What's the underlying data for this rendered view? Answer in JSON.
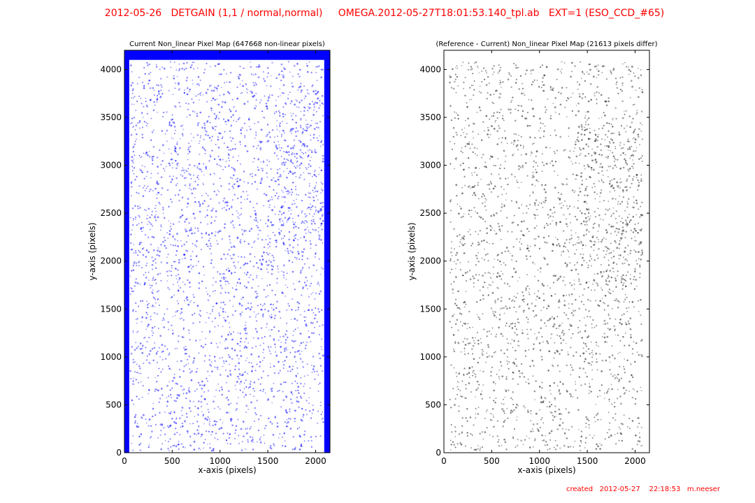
{
  "header": {
    "title": "2012-05-26   DETGAIN (1,1 / normal,normal)     OMEGA.2012-05-27T18:01:53.140_tpl.ab   EXT=1 (ESO_CCD_#65)",
    "title_color": "#ff0000"
  },
  "footer": {
    "created": "created   2012-05-27    22:18:53   m.neeser",
    "color": "#ff0000"
  },
  "chart_data": [
    {
      "type": "scatter",
      "title": "Current Non_linear Pixel Map (647668 non-linear pixels)",
      "xlabel": "x-axis (pixels)",
      "ylabel": "y-axis (pixels)",
      "xlim": [
        0,
        2150
      ],
      "ylim": [
        0,
        4200
      ],
      "xticks": [
        0,
        500,
        1000,
        1500,
        2000
      ],
      "yticks": [
        0,
        500,
        1000,
        1500,
        2000,
        2500,
        3000,
        3500,
        4000
      ],
      "grid": false,
      "point_color": "#0000ff",
      "border_regions": [
        {
          "x": [
            0,
            50
          ],
          "y": [
            0,
            4200
          ]
        },
        {
          "x": [
            2090,
            2150
          ],
          "y": [
            0,
            4200
          ]
        },
        {
          "x": [
            0,
            2150
          ],
          "y": [
            4100,
            4200
          ]
        }
      ],
      "density": "uniform random scatter with higher density toward x≈1700–2100, y≈2300–3600"
    },
    {
      "type": "scatter",
      "title": "(Reference - Current) Non_linear Pixel Map (21613 pixels differ)",
      "xlabel": "x-axis (pixels)",
      "ylabel": "y-axis (pixels)",
      "xlim": [
        0,
        2150
      ],
      "ylim": [
        0,
        4200
      ],
      "xticks": [
        0,
        500,
        1000,
        1500,
        2000
      ],
      "yticks": [
        0,
        500,
        1000,
        1500,
        2000,
        2500,
        3000,
        3500,
        4000
      ],
      "grid": false,
      "point_color": "#000000",
      "density": "uniform random scatter with higher density toward x≈1500–2100, y≈1800–3300"
    }
  ]
}
